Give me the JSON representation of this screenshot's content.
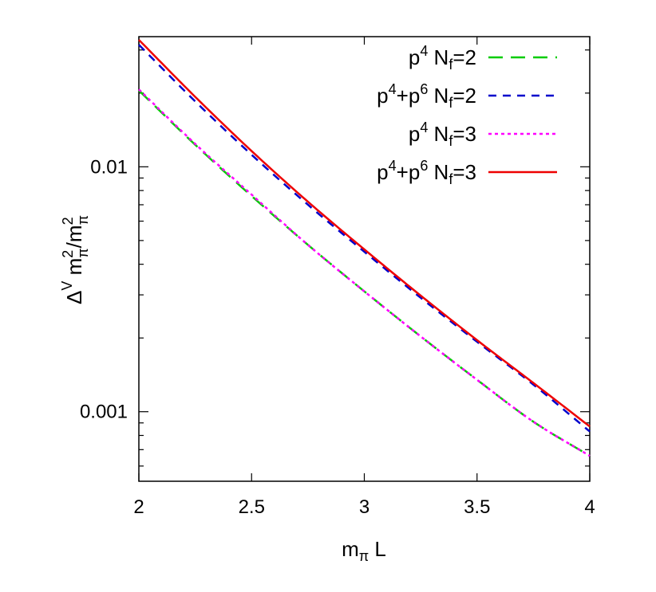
{
  "chart_data": {
    "type": "line",
    "xlabel": "m_π L",
    "ylabel": "Δ^V m_π^2/m_π^2",
    "xlim": [
      2,
      4
    ],
    "ylim": [
      0.00052,
      0.034
    ],
    "yscale": "log",
    "grid": false,
    "legend_position": "top-right",
    "x_ticks": [
      "2",
      "2.5",
      "3",
      "3.5",
      "4"
    ],
    "y_ticks": [
      "0.001",
      "0.01"
    ],
    "x": [
      2.0,
      2.25,
      2.5,
      2.75,
      3.0,
      3.25,
      3.5,
      3.75,
      4.0
    ],
    "series": [
      {
        "name": "p^4 N_f=2",
        "color": "#00cc00",
        "dash": "18,10",
        "values": [
          0.0205,
          0.0123,
          0.0076,
          0.0048,
          0.0031,
          0.00203,
          0.00135,
          0.00091,
          0.00066
        ]
      },
      {
        "name": "p^4+p^6 N_f=2",
        "color": "#0000cc",
        "dash": "10,8",
        "values": [
          0.0315,
          0.0185,
          0.0112,
          0.007,
          0.0045,
          0.00292,
          0.00193,
          0.00129,
          0.00083
        ]
      },
      {
        "name": "p^4 N_f=3",
        "color": "#ff00ff",
        "dash": "4,4",
        "values": [
          0.0207,
          0.0124,
          0.0077,
          0.0048,
          0.0031,
          0.00203,
          0.00135,
          0.00091,
          0.00066
        ]
      },
      {
        "name": "p^4+p^6 N_f=3",
        "color": "#ee0000",
        "dash": "",
        "values": [
          0.033,
          0.0193,
          0.0116,
          0.0072,
          0.0046,
          0.00298,
          0.00196,
          0.00131,
          0.00087
        ]
      }
    ]
  }
}
